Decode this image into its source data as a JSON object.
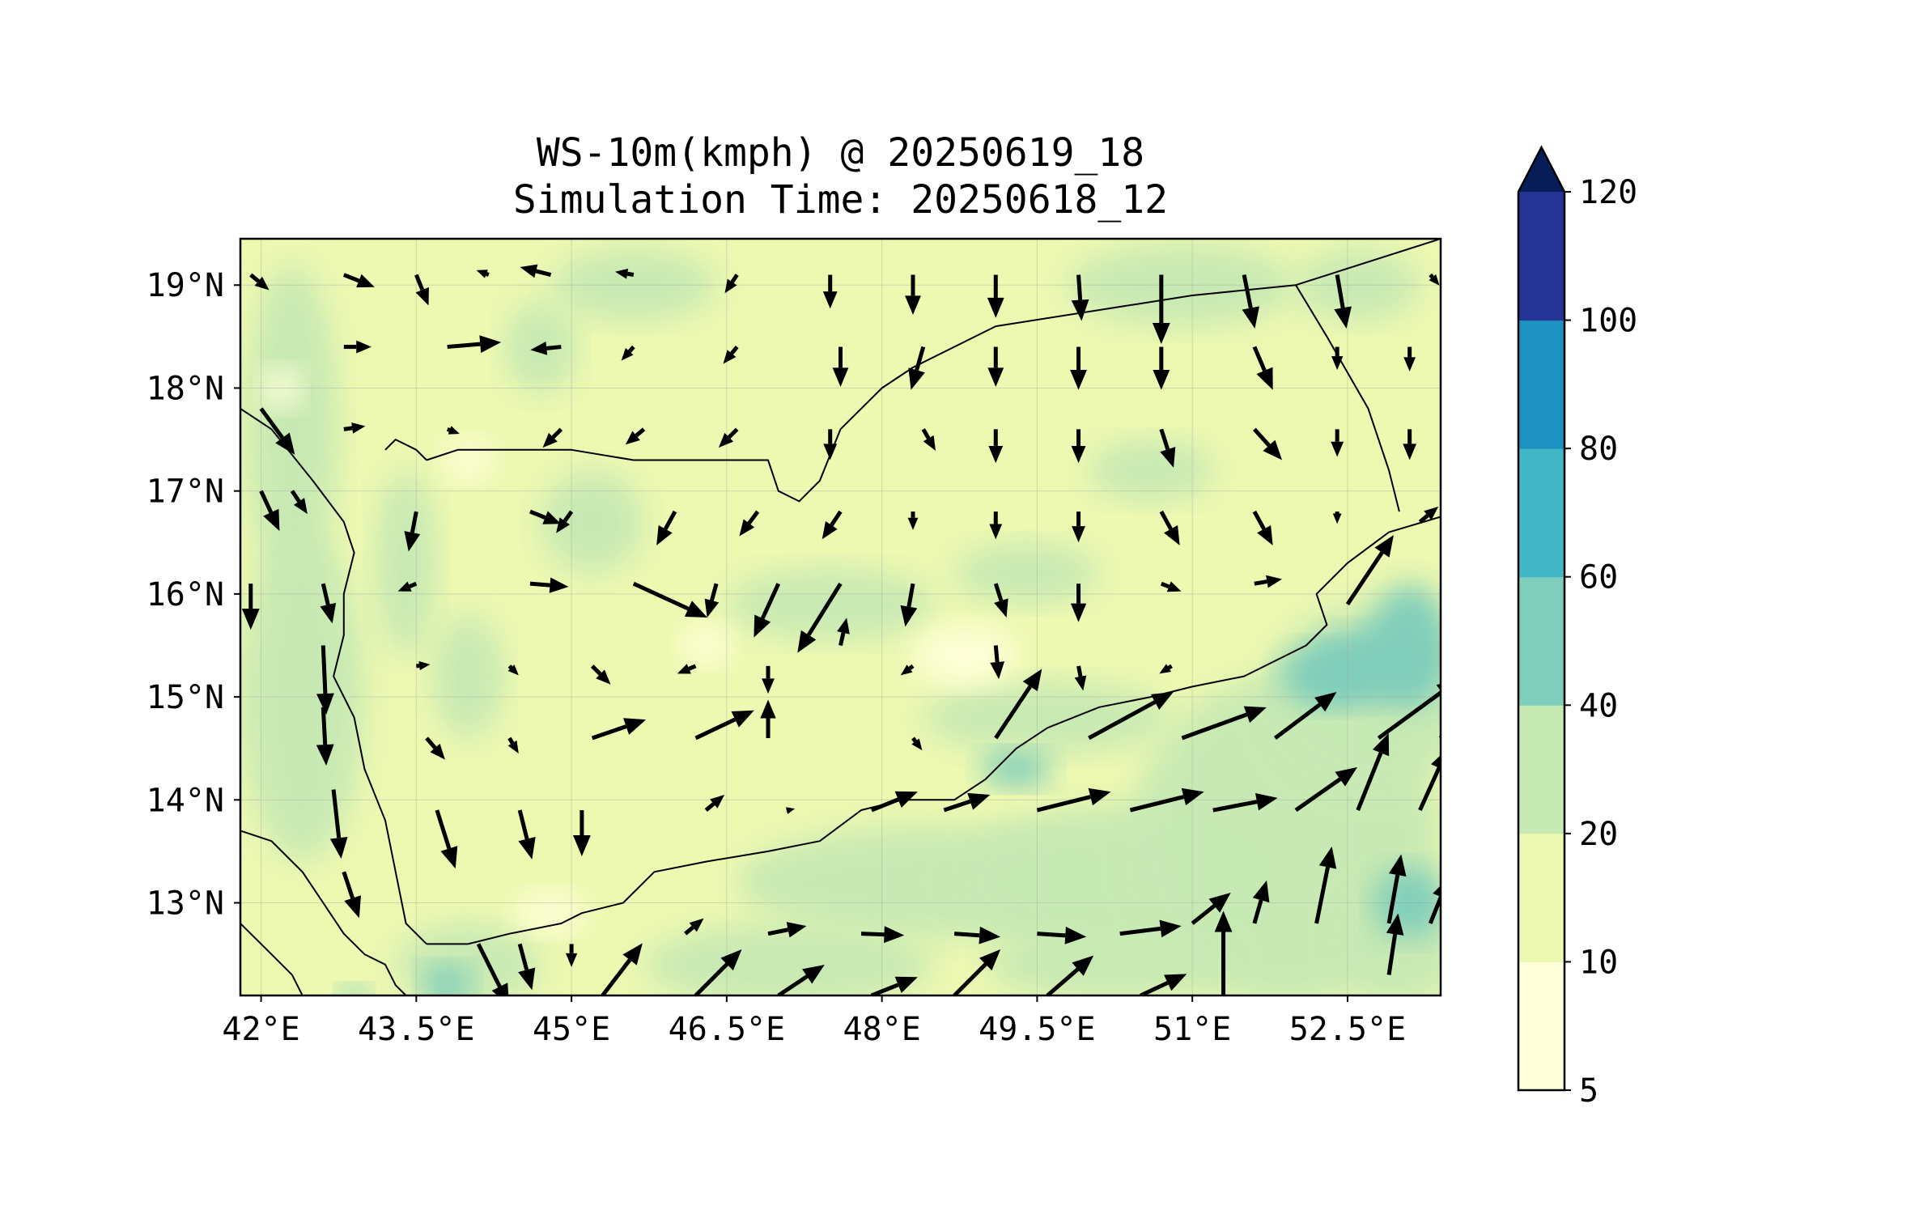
{
  "title": {
    "line1": "WS-10m(kmph) @ 20250619_18",
    "line2": "Simulation Time: 20250618_12"
  },
  "chart_data": {
    "type": "map",
    "variable": "10 m wind speed (kmph)",
    "extent": {
      "lon": [
        41.8,
        53.4
      ],
      "lat": [
        12.1,
        19.45
      ]
    },
    "lon_ticks": [
      42,
      43.5,
      45,
      46.5,
      48,
      49.5,
      51,
      52.5
    ],
    "lon_tick_labels": [
      "42°E",
      "43.5°E",
      "45°E",
      "46.5°E",
      "48°E",
      "49.5°E",
      "51°E",
      "52.5°E"
    ],
    "lat_ticks": [
      19,
      18,
      17,
      16,
      15,
      14,
      13
    ],
    "lat_tick_labels": [
      "19°N",
      "18°N",
      "17°N",
      "16°N",
      "15°N",
      "14°N",
      "13°N"
    ],
    "gridlines": true,
    "colorbar": {
      "levels": [
        5,
        10,
        20,
        40,
        60,
        80,
        100,
        120
      ],
      "labels": [
        "5",
        "10",
        "20",
        "40",
        "60",
        "80",
        "100",
        "120"
      ],
      "colors": [
        "#ffffd9",
        "#edf8b1",
        "#c7e9b4",
        "#7fcdbb",
        "#41b6c4",
        "#1d91c0",
        "#253494",
        "#081d58"
      ],
      "extend": "max"
    },
    "wind_vectors_kmph": [
      [
        41.9,
        19.1,
        12,
        -10
      ],
      [
        42.8,
        19.1,
        20,
        -8
      ],
      [
        43.5,
        19.1,
        8,
        -20
      ],
      [
        44.2,
        19.1,
        -8,
        3
      ],
      [
        44.8,
        19.1,
        -20,
        5
      ],
      [
        45.6,
        19.1,
        -12,
        2
      ],
      [
        46.6,
        19.1,
        -8,
        -12
      ],
      [
        47.5,
        19.1,
        0,
        -22
      ],
      [
        48.3,
        19.1,
        0,
        -26
      ],
      [
        49.1,
        19.1,
        0,
        -28
      ],
      [
        49.9,
        19.1,
        2,
        -30
      ],
      [
        50.7,
        19.1,
        0,
        -45
      ],
      [
        51.5,
        19.1,
        7,
        -35
      ],
      [
        52.4,
        19.1,
        6,
        -35
      ],
      [
        53.3,
        19.1,
        6,
        -7
      ],
      [
        42.8,
        18.4,
        18,
        0
      ],
      [
        43.8,
        18.4,
        35,
        3
      ],
      [
        44.9,
        18.4,
        -20,
        -2
      ],
      [
        45.6,
        18.4,
        -8,
        -9
      ],
      [
        46.6,
        18.4,
        -9,
        -11
      ],
      [
        47.6,
        18.4,
        0,
        -26
      ],
      [
        48.4,
        18.4,
        -8,
        -28
      ],
      [
        49.1,
        18.4,
        0,
        -26
      ],
      [
        49.9,
        18.4,
        0,
        -28
      ],
      [
        50.7,
        18.4,
        0,
        -28
      ],
      [
        51.6,
        18.4,
        12,
        -28
      ],
      [
        52.4,
        18.4,
        0,
        -15
      ],
      [
        53.1,
        18.4,
        0,
        -16
      ],
      [
        42.8,
        17.6,
        14,
        2
      ],
      [
        43.8,
        17.6,
        8,
        -3
      ],
      [
        44.9,
        17.6,
        -12,
        -12
      ],
      [
        45.7,
        17.6,
        -12,
        -10
      ],
      [
        46.6,
        17.6,
        -12,
        -12
      ],
      [
        47.5,
        17.6,
        0,
        -20
      ],
      [
        48.4,
        17.6,
        8,
        -14
      ],
      [
        49.1,
        17.6,
        0,
        -22
      ],
      [
        49.9,
        17.6,
        0,
        -22
      ],
      [
        50.7,
        17.6,
        8,
        -25
      ],
      [
        51.6,
        17.6,
        18,
        -20
      ],
      [
        52.4,
        17.6,
        0,
        -18
      ],
      [
        53.1,
        17.6,
        0,
        -20
      ],
      [
        42.0,
        17.8,
        22,
        -30
      ],
      [
        42.0,
        17.0,
        12,
        -26
      ],
      [
        42.3,
        17.0,
        10,
        -15
      ],
      [
        43.5,
        16.8,
        -5,
        -26
      ],
      [
        44.6,
        16.8,
        20,
        -8
      ],
      [
        45.0,
        16.8,
        -10,
        -14
      ],
      [
        46.0,
        16.8,
        -12,
        -22
      ],
      [
        46.8,
        16.8,
        -12,
        -16
      ],
      [
        47.6,
        16.8,
        -12,
        -18
      ],
      [
        48.3,
        16.8,
        0,
        -12
      ],
      [
        49.1,
        16.8,
        0,
        -18
      ],
      [
        49.9,
        16.8,
        0,
        -20
      ],
      [
        50.7,
        16.8,
        12,
        -22
      ],
      [
        51.6,
        16.8,
        12,
        -22
      ],
      [
        52.4,
        16.8,
        0,
        -8
      ],
      [
        52.5,
        15.9,
        30,
        45
      ],
      [
        53.2,
        16.7,
        12,
        10
      ],
      [
        41.9,
        16.1,
        0,
        -30
      ],
      [
        42.6,
        16.1,
        6,
        -26
      ],
      [
        43.5,
        16.1,
        -12,
        -5
      ],
      [
        44.6,
        16.1,
        25,
        -2
      ],
      [
        45.6,
        16.1,
        48,
        -22
      ],
      [
        46.4,
        16.1,
        -6,
        -22
      ],
      [
        47.0,
        16.1,
        -16,
        -35
      ],
      [
        47.6,
        16.1,
        -28,
        -45
      ],
      [
        48.3,
        16.1,
        -5,
        -28
      ],
      [
        49.1,
        16.1,
        7,
        -22
      ],
      [
        49.9,
        16.1,
        0,
        -25
      ],
      [
        50.7,
        16.1,
        13,
        -5
      ],
      [
        51.6,
        16.1,
        18,
        3
      ],
      [
        42.6,
        15.5,
        2,
        -45
      ],
      [
        43.5,
        15.3,
        9,
        1
      ],
      [
        44.4,
        15.3,
        6,
        -6
      ],
      [
        45.2,
        15.3,
        12,
        -12
      ],
      [
        46.2,
        15.3,
        -12,
        -5
      ],
      [
        46.9,
        15.3,
        0,
        -18
      ],
      [
        47.6,
        15.5,
        4,
        18
      ],
      [
        48.3,
        15.3,
        -8,
        -6
      ],
      [
        49.1,
        15.5,
        2,
        -22
      ],
      [
        49.9,
        15.3,
        3,
        -16
      ],
      [
        50.8,
        15.3,
        -8,
        -5
      ],
      [
        51.8,
        15.3,
        0,
        0
      ],
      [
        42.6,
        14.9,
        2,
        -38
      ],
      [
        43.6,
        14.6,
        12,
        -14
      ],
      [
        44.4,
        14.6,
        6,
        -10
      ],
      [
        45.2,
        14.6,
        35,
        12
      ],
      [
        46.2,
        14.6,
        38,
        18
      ],
      [
        46.9,
        14.6,
        0,
        25
      ],
      [
        47.6,
        14.6,
        0,
        0
      ],
      [
        48.3,
        14.6,
        6,
        -8
      ],
      [
        49.1,
        14.6,
        30,
        45
      ],
      [
        50.0,
        14.6,
        55,
        30
      ],
      [
        50.9,
        14.6,
        55,
        20
      ],
      [
        51.8,
        14.6,
        40,
        30
      ],
      [
        52.8,
        14.6,
        52,
        38
      ],
      [
        53.4,
        14.6,
        22,
        35
      ],
      [
        42.7,
        14.1,
        5,
        -45
      ],
      [
        43.7,
        13.9,
        12,
        -38
      ],
      [
        44.5,
        13.9,
        8,
        -32
      ],
      [
        45.1,
        13.9,
        0,
        -30
      ],
      [
        46.3,
        13.9,
        12,
        10
      ],
      [
        47.1,
        13.9,
        4,
        1
      ],
      [
        47.9,
        13.9,
        30,
        12
      ],
      [
        48.6,
        13.9,
        30,
        10
      ],
      [
        49.5,
        13.9,
        48,
        12
      ],
      [
        50.4,
        13.9,
        48,
        12
      ],
      [
        51.2,
        13.9,
        42,
        8
      ],
      [
        52.0,
        13.9,
        40,
        28
      ],
      [
        52.6,
        13.9,
        20,
        50
      ],
      [
        53.2,
        13.9,
        18,
        40
      ],
      [
        42.8,
        13.3,
        10,
        -30
      ],
      [
        44.1,
        12.6,
        20,
        -40
      ],
      [
        44.5,
        12.6,
        8,
        -30
      ],
      [
        45.0,
        12.6,
        0,
        -15
      ],
      [
        46.1,
        12.7,
        12,
        10
      ],
      [
        46.9,
        12.7,
        25,
        5
      ],
      [
        47.8,
        12.7,
        28,
        -1
      ],
      [
        48.7,
        12.7,
        30,
        -2
      ],
      [
        49.5,
        12.7,
        32,
        -2
      ],
      [
        50.3,
        12.7,
        40,
        5
      ],
      [
        51.0,
        12.8,
        25,
        20
      ],
      [
        51.6,
        12.8,
        8,
        28
      ],
      [
        52.2,
        12.8,
        10,
        50
      ],
      [
        52.9,
        12.8,
        8,
        45
      ],
      [
        53.3,
        12.8,
        12,
        30
      ],
      [
        52.9,
        12.3,
        6,
        40
      ],
      [
        45.3,
        12.1,
        26,
        34
      ],
      [
        46.2,
        12.1,
        30,
        30
      ],
      [
        47.0,
        12.1,
        30,
        20
      ],
      [
        47.9,
        12.1,
        30,
        12
      ],
      [
        48.7,
        12.1,
        30,
        30
      ],
      [
        49.6,
        12.1,
        30,
        26
      ],
      [
        50.5,
        12.1,
        30,
        14
      ],
      [
        51.3,
        12.1,
        0,
        55
      ]
    ]
  }
}
